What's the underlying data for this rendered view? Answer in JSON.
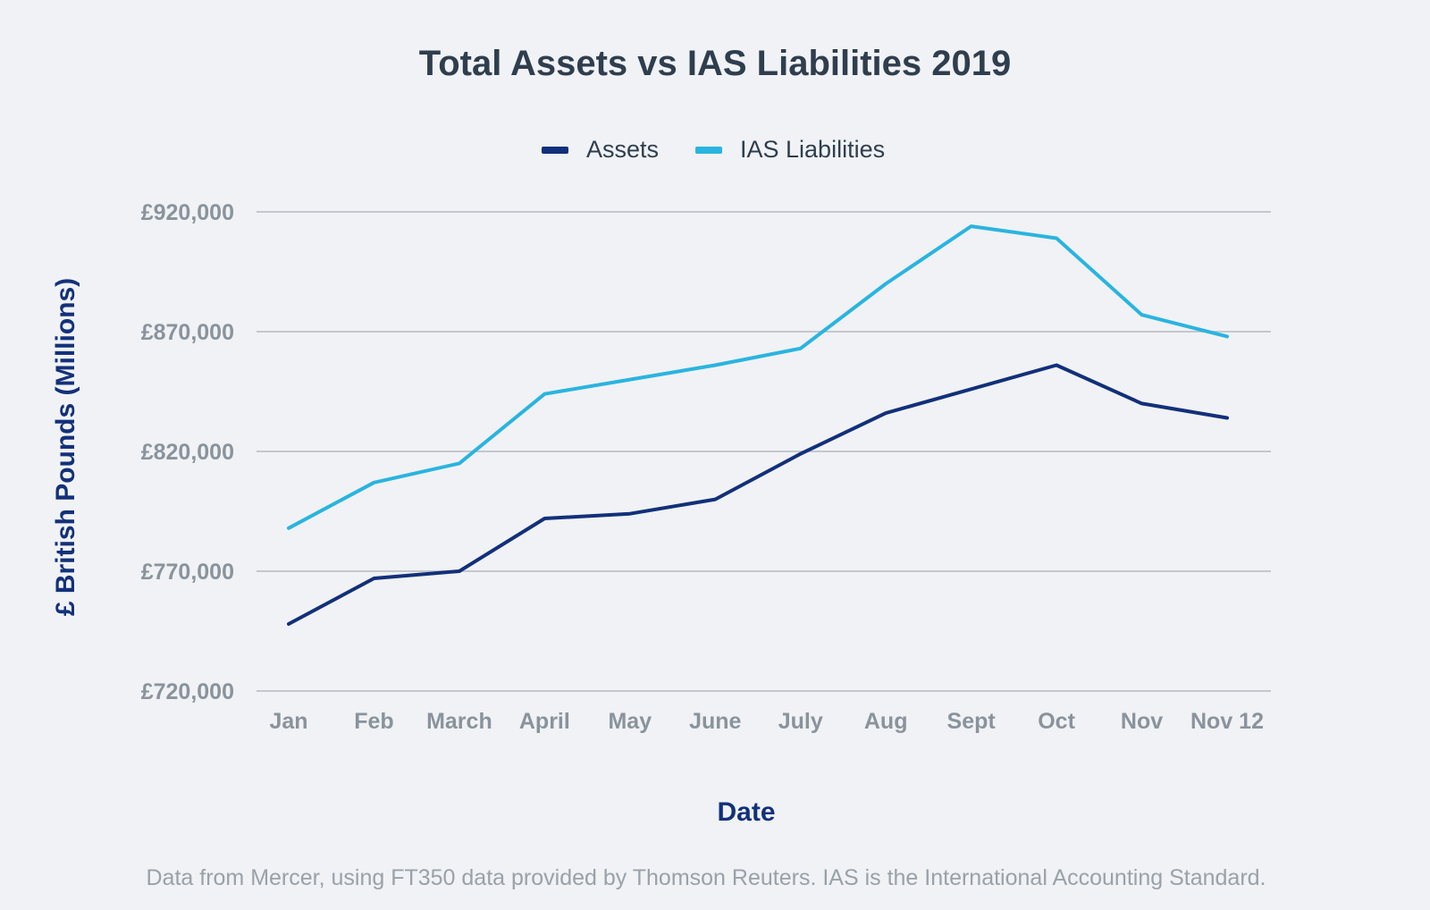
{
  "chart_data": {
    "type": "line",
    "title": "Total Assets vs IAS Liabilities 2019",
    "xlabel": "Date",
    "ylabel": "£ British Pounds (Millions)",
    "ylim": [
      720000,
      920000
    ],
    "y_ticks": [
      "£720,000",
      "£770,000",
      "£820,000",
      "£870,000",
      "£920,000"
    ],
    "categories": [
      "Jan",
      "Feb",
      "March",
      "April",
      "May",
      "June",
      "July",
      "Aug",
      "Sept",
      "Oct",
      "Nov",
      "Nov 12"
    ],
    "legend_position": "top-center",
    "grid": true,
    "series": [
      {
        "name": "Assets",
        "color": "#12307a",
        "values": [
          748000,
          767000,
          770000,
          792000,
          794000,
          800000,
          819000,
          836000,
          846000,
          856000,
          840000,
          834000
        ]
      },
      {
        "name": "IAS Liabilities",
        "color": "#2ab4df",
        "values": [
          788000,
          807000,
          815000,
          844000,
          850000,
          856000,
          863000,
          890000,
          914000,
          909000,
          877000,
          868000
        ]
      }
    ],
    "footnote": "Data from Mercer, using FT350 data provided by Thomson Reuters. IAS is the International Accounting Standard."
  }
}
